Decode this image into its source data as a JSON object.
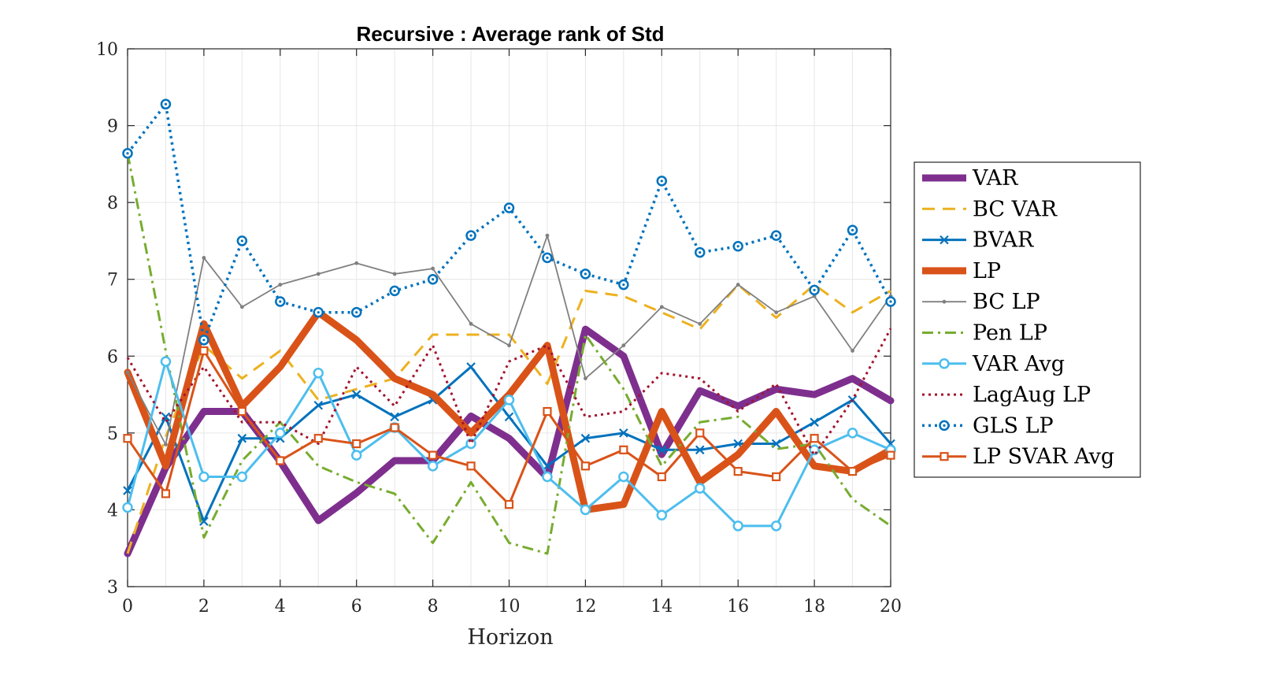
{
  "chart_data": {
    "type": "line",
    "title": "Recursive : Average rank of Std",
    "xlabel": "Horizon",
    "ylabel": "",
    "xlim": [
      0,
      20
    ],
    "ylim": [
      3,
      10
    ],
    "xticks": [
      "0",
      "2",
      "4",
      "6",
      "8",
      "10",
      "12",
      "14",
      "16",
      "18",
      "20"
    ],
    "yticks": [
      "3",
      "4",
      "5",
      "6",
      "7",
      "8",
      "9",
      "10"
    ],
    "grid": true,
    "legend_position": "right",
    "x": [
      0,
      1,
      2,
      3,
      4,
      5,
      6,
      7,
      8,
      9,
      10,
      11,
      12,
      13,
      14,
      15,
      16,
      17,
      18,
      19,
      20
    ],
    "series": [
      {
        "name": "VAR",
        "color": "#7E2F8E",
        "style": "solid",
        "width": 9,
        "marker": "none",
        "values": [
          3.43,
          4.55,
          5.28,
          5.28,
          4.63,
          3.86,
          4.22,
          4.64,
          4.64,
          5.22,
          4.93,
          4.42,
          6.35,
          6.0,
          4.72,
          5.55,
          5.35,
          5.57,
          5.5,
          5.71,
          5.42
        ]
      },
      {
        "name": "BC VAR",
        "color": "#EDB120",
        "style": "dashed",
        "width": 3,
        "marker": "none",
        "values": [
          3.43,
          4.95,
          6.14,
          5.71,
          6.07,
          5.43,
          5.57,
          5.71,
          6.28,
          6.28,
          6.28,
          5.64,
          6.85,
          6.78,
          6.57,
          6.35,
          6.93,
          6.5,
          6.93,
          6.57,
          6.85
        ]
      },
      {
        "name": "BVAR",
        "color": "#0072BD",
        "style": "solid",
        "width": 3,
        "marker": "x",
        "values": [
          4.25,
          5.21,
          3.85,
          4.93,
          4.93,
          5.36,
          5.5,
          5.21,
          5.43,
          5.86,
          5.21,
          4.57,
          4.93,
          5.0,
          4.78,
          4.78,
          4.86,
          4.86,
          5.14,
          5.43,
          4.86
        ]
      },
      {
        "name": "LP",
        "color": "#D95319",
        "style": "solid",
        "width": 9,
        "marker": "none",
        "values": [
          5.79,
          4.57,
          6.42,
          5.35,
          5.86,
          6.57,
          6.21,
          5.71,
          5.5,
          5.0,
          5.5,
          6.14,
          4.0,
          4.07,
          5.28,
          4.36,
          4.72,
          5.28,
          4.57,
          4.5,
          4.78
        ]
      },
      {
        "name": "BC LP",
        "color": "#808080",
        "style": "solid",
        "width": 1.8,
        "marker": "dot",
        "values": [
          5.79,
          4.85,
          7.28,
          6.64,
          6.93,
          7.07,
          7.21,
          7.07,
          7.14,
          6.42,
          6.14,
          7.57,
          5.71,
          6.14,
          6.64,
          6.42,
          6.93,
          6.57,
          6.78,
          6.07,
          6.78
        ]
      },
      {
        "name": "Pen LP",
        "color": "#77AC30",
        "style": "dashdot",
        "width": 3,
        "marker": "none",
        "values": [
          8.64,
          6.07,
          3.64,
          4.64,
          5.14,
          4.57,
          4.36,
          4.21,
          3.57,
          4.36,
          3.57,
          3.43,
          6.28,
          5.57,
          4.57,
          5.14,
          5.21,
          4.79,
          4.86,
          4.14,
          3.79
        ]
      },
      {
        "name": "VAR Avg",
        "color": "#4DBEEE",
        "style": "solid",
        "width": 3,
        "marker": "circle",
        "values": [
          4.03,
          5.93,
          4.43,
          4.43,
          5.0,
          5.78,
          4.71,
          5.07,
          4.57,
          4.86,
          5.43,
          4.43,
          4.0,
          4.43,
          3.93,
          4.28,
          3.79,
          3.79,
          4.78,
          5.0,
          4.78
        ]
      },
      {
        "name": "LagAug LP",
        "color": "#A2142F",
        "style": "dotted",
        "width": 3,
        "marker": "none",
        "values": [
          5.98,
          5.14,
          5.86,
          5.14,
          5.14,
          4.86,
          5.86,
          5.35,
          6.14,
          4.86,
          5.93,
          6.14,
          5.21,
          5.28,
          5.78,
          5.71,
          5.28,
          5.64,
          4.71,
          5.43,
          6.36
        ]
      },
      {
        "name": "GLS LP",
        "color": "#0072BD",
        "style": "dotted",
        "width": 3.5,
        "marker": "circle-dot",
        "values": [
          8.64,
          9.28,
          6.21,
          7.5,
          6.71,
          6.57,
          6.57,
          6.85,
          7.0,
          7.57,
          7.93,
          7.28,
          7.07,
          6.93,
          8.28,
          7.35,
          7.43,
          7.57,
          6.86,
          7.64,
          6.71
        ]
      },
      {
        "name": "LP SVAR Avg",
        "color": "#D95319",
        "style": "solid",
        "width": 3,
        "marker": "square",
        "values": [
          4.93,
          4.21,
          6.07,
          5.28,
          4.64,
          4.93,
          4.86,
          5.07,
          4.71,
          4.57,
          4.07,
          5.28,
          4.57,
          4.78,
          4.43,
          5.0,
          4.5,
          4.43,
          4.93,
          4.5,
          4.71
        ]
      }
    ]
  }
}
